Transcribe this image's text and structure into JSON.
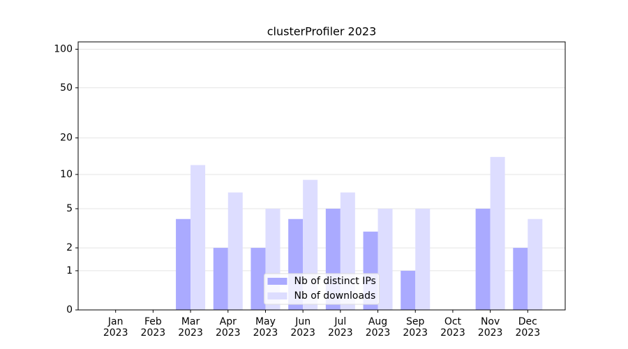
{
  "chart_data": {
    "type": "bar",
    "title": "clusterProfiler 2023",
    "categories": [
      "Jan\n2023",
      "Feb\n2023",
      "Mar\n2023",
      "Apr\n2023",
      "May\n2023",
      "Jun\n2023",
      "Jul\n2023",
      "Aug\n2023",
      "Sep\n2023",
      "Oct\n2023",
      "Nov\n2023",
      "Dec\n2023"
    ],
    "series": [
      {
        "name": "Nb of distinct IPs",
        "color": "#aaaaff",
        "values": [
          0,
          0,
          4,
          2,
          2,
          4,
          5,
          3,
          1,
          0,
          5,
          2
        ]
      },
      {
        "name": "Nb of downloads",
        "color": "#ddddff",
        "values": [
          0,
          0,
          12,
          7,
          5,
          9,
          7,
          5,
          5,
          0,
          14,
          4
        ]
      }
    ],
    "yscale": "log1p",
    "ylim": [
      0,
      114
    ],
    "yticks": [
      0,
      1,
      2,
      5,
      10,
      20,
      50,
      100
    ],
    "grid": true,
    "legend": "lower center"
  }
}
